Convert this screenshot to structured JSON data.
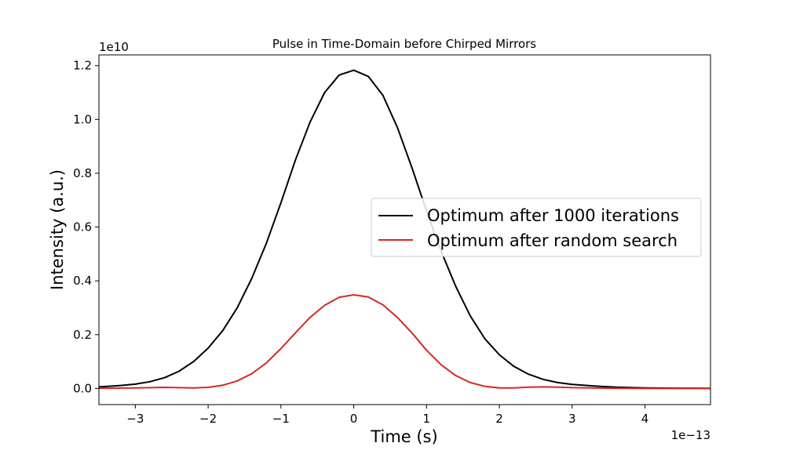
{
  "chart_data": {
    "type": "line",
    "title": "Pulse in Time-Domain before Chirped Mirrors",
    "xlabel": "Time (s)",
    "ylabel": "Intensity (a.u.)",
    "x_offset_label": "1e−13",
    "y_offset_label": "1e10",
    "xlim": [
      -3.5,
      4.9
    ],
    "ylim": [
      -0.06,
      1.24
    ],
    "x_ticks": [
      -3,
      -2,
      -1,
      0,
      1,
      2,
      3,
      4
    ],
    "x_tick_labels": [
      "−3",
      "−2",
      "−1",
      "0",
      "1",
      "2",
      "3",
      "4"
    ],
    "y_ticks": [
      0.0,
      0.2,
      0.4,
      0.6,
      0.8,
      1.0,
      1.2
    ],
    "y_tick_labels": [
      "0.0",
      "0.2",
      "0.4",
      "0.6",
      "0.8",
      "1.0",
      "1.2"
    ],
    "grid": false,
    "legend_position": "center-right",
    "series": [
      {
        "name": "Optimum after 1000 iterations",
        "color": "#000000",
        "x": [
          -3.5,
          -3.2,
          -3.0,
          -2.8,
          -2.6,
          -2.4,
          -2.2,
          -2.0,
          -1.8,
          -1.6,
          -1.4,
          -1.2,
          -1.0,
          -0.8,
          -0.6,
          -0.4,
          -0.2,
          0.0,
          0.2,
          0.4,
          0.6,
          0.8,
          1.0,
          1.2,
          1.4,
          1.6,
          1.8,
          2.0,
          2.2,
          2.4,
          2.6,
          2.8,
          3.0,
          3.3,
          3.6,
          4.0,
          4.5,
          4.9
        ],
        "y": [
          0.006,
          0.011,
          0.016,
          0.025,
          0.04,
          0.064,
          0.1,
          0.15,
          0.215,
          0.3,
          0.41,
          0.54,
          0.69,
          0.85,
          0.99,
          1.1,
          1.165,
          1.183,
          1.16,
          1.09,
          0.97,
          0.82,
          0.66,
          0.51,
          0.38,
          0.27,
          0.185,
          0.125,
          0.082,
          0.053,
          0.034,
          0.022,
          0.015,
          0.009,
          0.005,
          0.002,
          0.001,
          0.0005
        ]
      },
      {
        "name": "Optimum after random search",
        "color": "#d62728",
        "x": [
          -3.5,
          -3.0,
          -2.6,
          -2.2,
          -2.0,
          -1.8,
          -1.6,
          -1.4,
          -1.2,
          -1.0,
          -0.8,
          -0.6,
          -0.4,
          -0.2,
          0.0,
          0.2,
          0.4,
          0.6,
          0.8,
          1.0,
          1.2,
          1.4,
          1.6,
          1.8,
          2.0,
          2.2,
          2.4,
          2.6,
          2.8,
          3.0,
          3.5,
          4.0,
          4.9
        ],
        "y": [
          0.001,
          0.002,
          0.004,
          0.002,
          0.004,
          0.012,
          0.028,
          0.055,
          0.095,
          0.148,
          0.207,
          0.264,
          0.309,
          0.339,
          0.348,
          0.34,
          0.311,
          0.264,
          0.206,
          0.142,
          0.088,
          0.048,
          0.022,
          0.008,
          0.002,
          0.002,
          0.005,
          0.006,
          0.005,
          0.003,
          0.001,
          0.0,
          0.0
        ]
      }
    ]
  }
}
